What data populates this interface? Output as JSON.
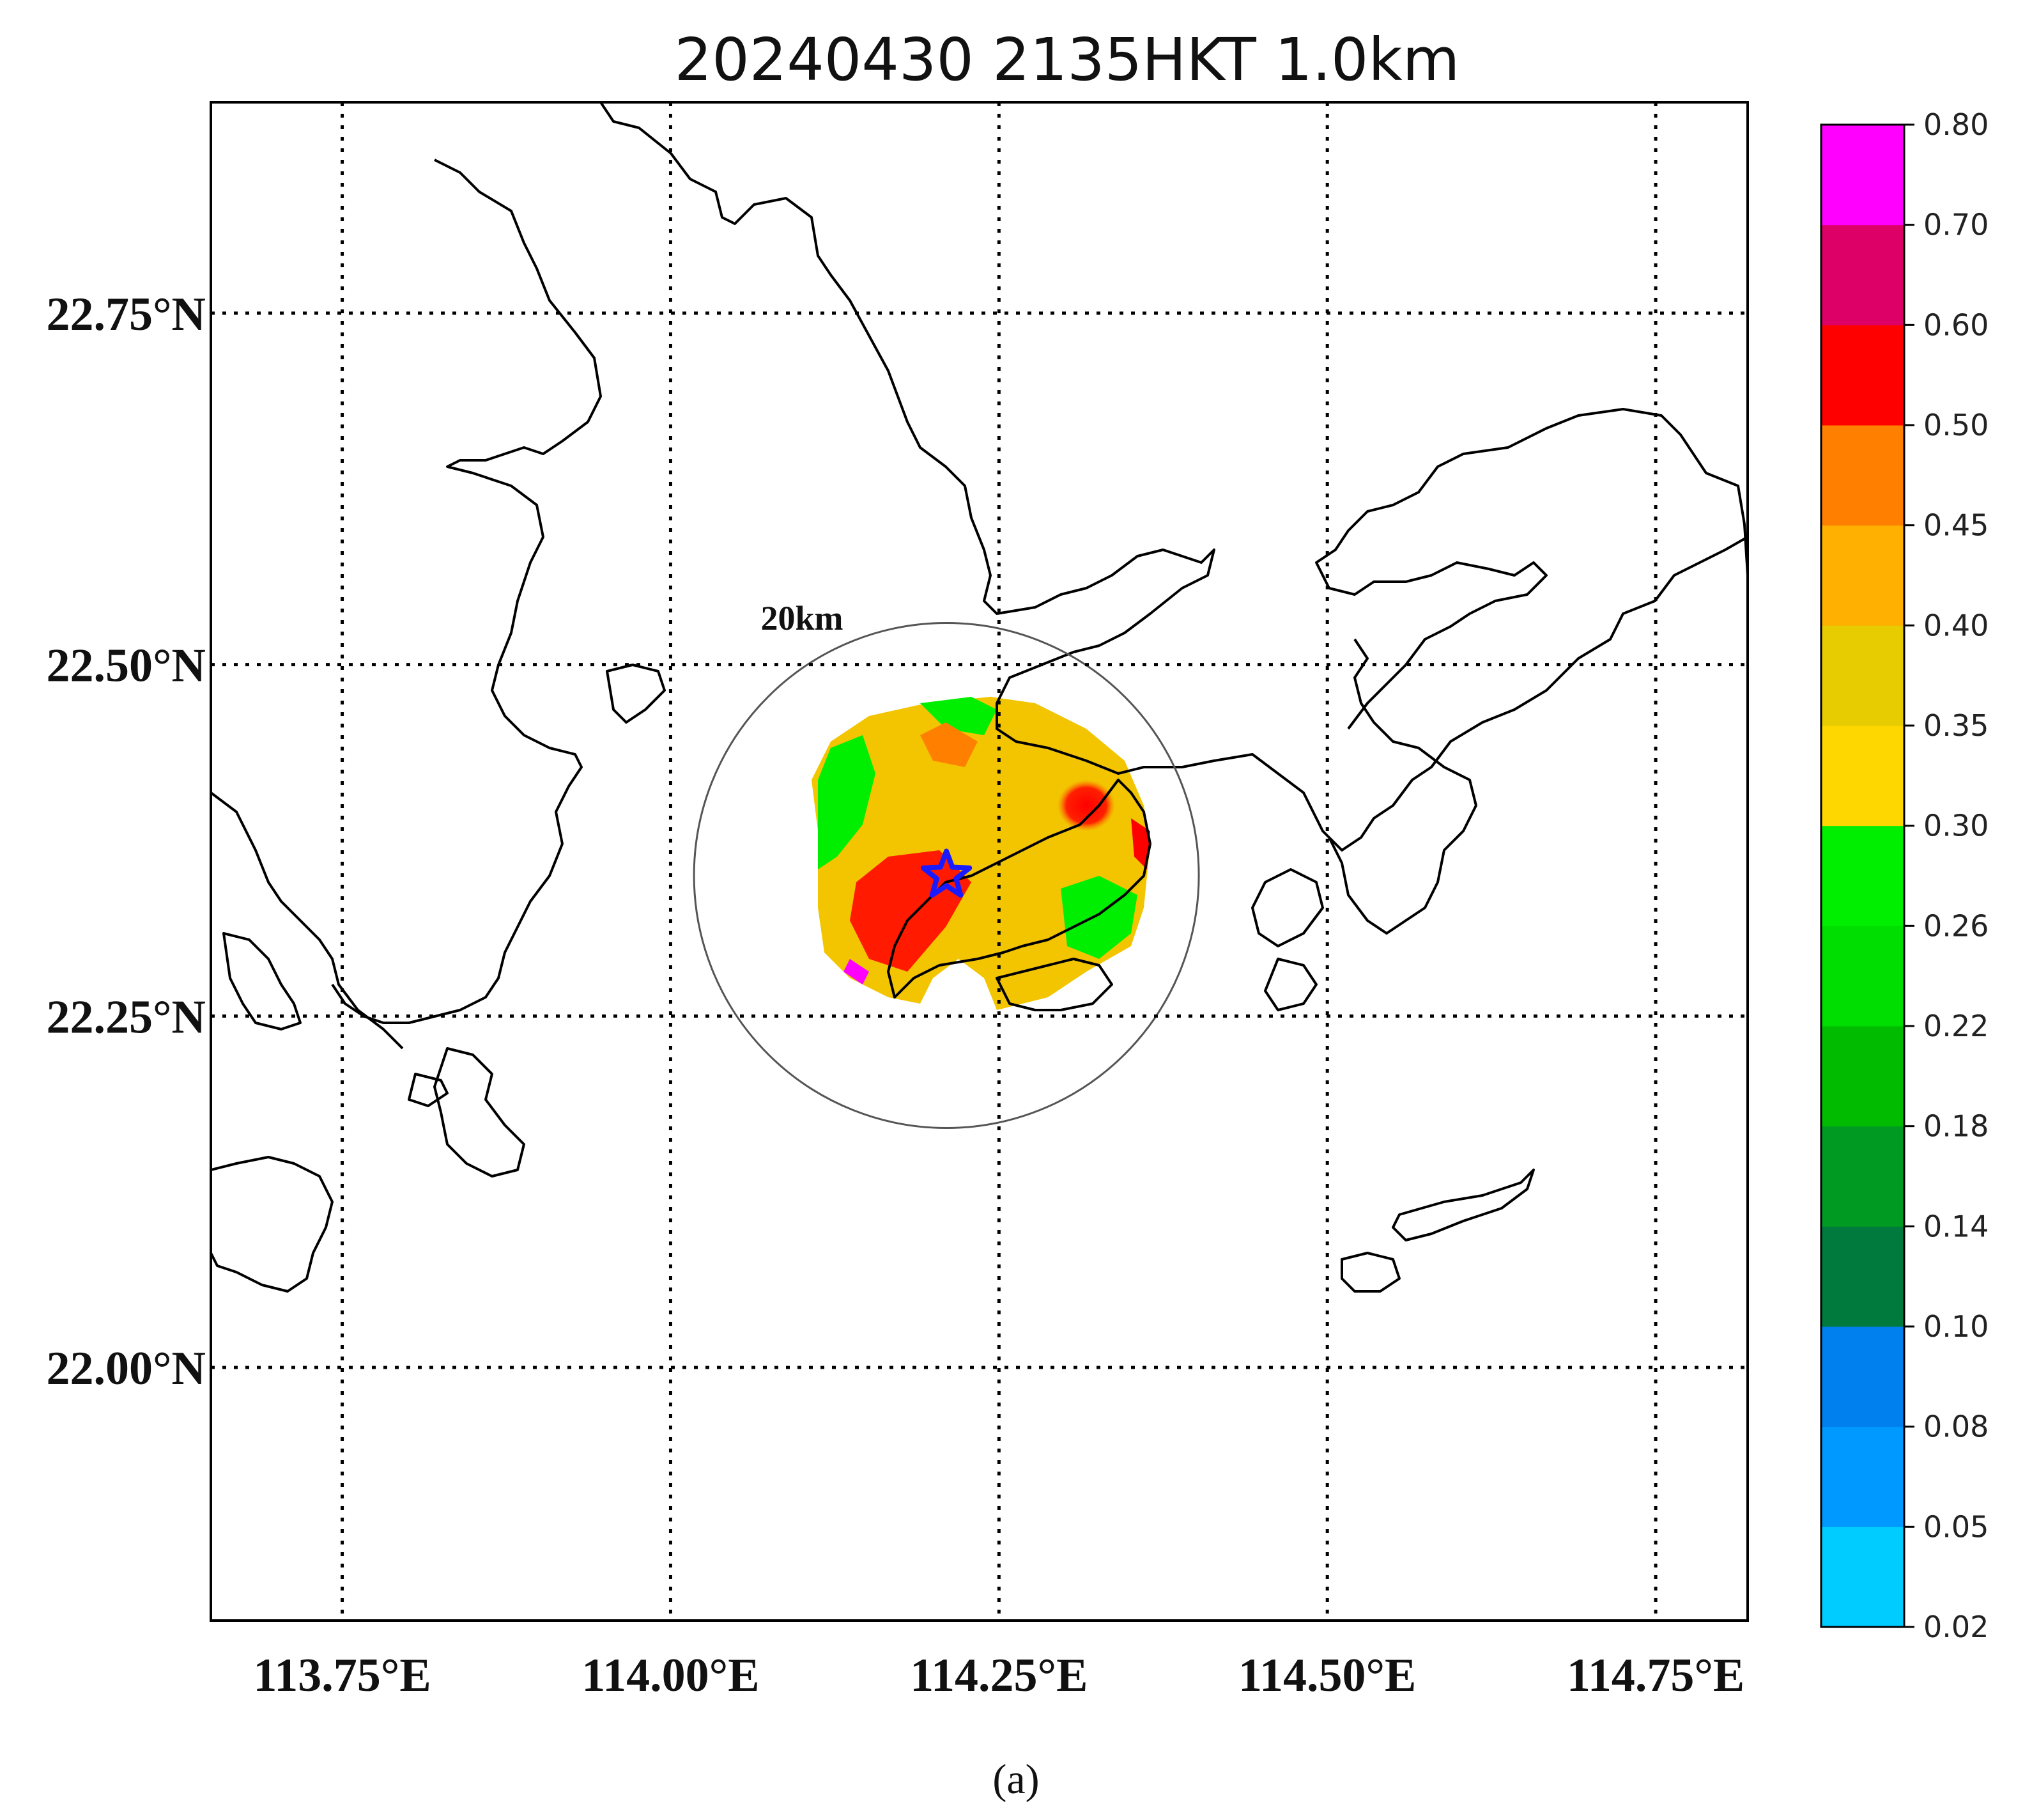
{
  "title": "20240430 2135HKT 1.0km",
  "caption": "(a)",
  "map": {
    "lon_range": [
      113.65,
      114.82
    ],
    "lat_range": [
      21.82,
      22.9
    ],
    "lon_ticks": [
      {
        "value": 113.75,
        "label": "113.75°E"
      },
      {
        "value": 114.0,
        "label": "114.00°E"
      },
      {
        "value": 114.25,
        "label": "114.25°E"
      },
      {
        "value": 114.5,
        "label": "114.50°E"
      },
      {
        "value": 114.75,
        "label": "114.75°E"
      }
    ],
    "lat_ticks": [
      {
        "value": 22.75,
        "label": "22.75°N"
      },
      {
        "value": 22.5,
        "label": "22.50°N"
      },
      {
        "value": 22.25,
        "label": "22.25°N"
      },
      {
        "value": 22.0,
        "label": "22.00°N"
      }
    ],
    "grid": true,
    "range_ring": {
      "label": "20km",
      "center_lon": 114.21,
      "center_lat": 22.35
    },
    "station_marker": {
      "icon": "star-icon",
      "lon": 114.21,
      "lat": 22.35,
      "color": "#1a1aff"
    }
  },
  "colorbar": {
    "colors": [
      "#00ccff",
      "#0099ff",
      "#0080ee",
      "#007a3d",
      "#009922",
      "#00bb00",
      "#00dd00",
      "#00ee00",
      "#ffd700",
      "#e6cc00",
      "#ffb000",
      "#ff8000",
      "#ff0000",
      "#dd0066",
      "#ff00ff"
    ],
    "tick_labels": [
      "0.02",
      "0.05",
      "0.08",
      "0.10",
      "0.14",
      "0.18",
      "0.22",
      "0.26",
      "0.30",
      "0.35",
      "0.40",
      "0.45",
      "0.50",
      "0.60",
      "0.70",
      "0.80"
    ]
  }
}
